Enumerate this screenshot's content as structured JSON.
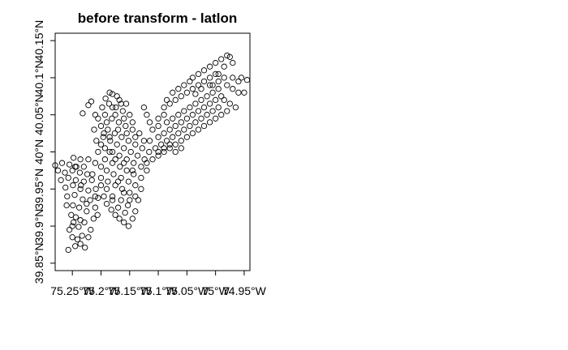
{
  "chart_data": {
    "type": "scatter",
    "title": "before transform - latlon",
    "xlabel": "",
    "ylabel": "",
    "xlim": [
      -75.28,
      -74.94
    ],
    "ylim": [
      39.84,
      40.16
    ],
    "x_ticks": [
      {
        "value": -75.25,
        "label": "75.25°W"
      },
      {
        "value": -75.2,
        "label": "75.2°W"
      },
      {
        "value": -75.15,
        "label": "75.15°W"
      },
      {
        "value": -75.1,
        "label": "75.1°W"
      },
      {
        "value": -75.05,
        "label": "75.05°W"
      },
      {
        "value": -75.0,
        "label": "75°W"
      },
      {
        "value": -74.95,
        "label": "74.95°W"
      }
    ],
    "y_ticks": [
      {
        "value": 39.85,
        "label": "39.85°N"
      },
      {
        "value": 39.9,
        "label": "39.9°N"
      },
      {
        "value": 39.95,
        "label": "39.95°N"
      },
      {
        "value": 40.0,
        "label": "40°N"
      },
      {
        "value": 40.05,
        "label": "40.05°N"
      },
      {
        "value": 40.1,
        "label": "40.1°N"
      },
      {
        "value": 40.15,
        "label": "40.15°N"
      }
    ],
    "grid": false,
    "legend": "none",
    "marker": "open-circle",
    "point_color": "#000000",
    "series": [
      {
        "points": [
          [
            -75.257,
            39.868
          ],
          [
            -75.245,
            39.873
          ],
          [
            -75.236,
            39.876
          ],
          [
            -75.228,
            39.871
          ],
          [
            -75.241,
            39.882
          ],
          [
            -75.25,
            39.885
          ],
          [
            -75.233,
            39.887
          ],
          [
            -75.222,
            39.885
          ],
          [
            -75.255,
            39.895
          ],
          [
            -75.239,
            39.899
          ],
          [
            -75.248,
            39.905
          ],
          [
            -75.229,
            39.905
          ],
          [
            -75.218,
            39.895
          ],
          [
            -75.252,
            39.915
          ],
          [
            -75.244,
            39.912
          ],
          [
            -75.236,
            39.908
          ],
          [
            -75.213,
            39.91
          ],
          [
            -75.206,
            39.915
          ],
          [
            -75.26,
            39.928
          ],
          [
            -75.249,
            39.928
          ],
          [
            -75.238,
            39.925
          ],
          [
            -75.225,
            39.92
          ],
          [
            -75.21,
            39.925
          ],
          [
            -75.259,
            39.94
          ],
          [
            -75.246,
            39.942
          ],
          [
            -75.232,
            39.936
          ],
          [
            -75.219,
            39.935
          ],
          [
            -75.205,
            39.938
          ],
          [
            -75.262,
            39.952
          ],
          [
            -75.249,
            39.955
          ],
          [
            -75.236,
            39.95
          ],
          [
            -75.222,
            39.948
          ],
          [
            -75.209,
            39.95
          ],
          [
            -75.27,
            39.962
          ],
          [
            -75.257,
            39.965
          ],
          [
            -75.244,
            39.962
          ],
          [
            -75.23,
            39.96
          ],
          [
            -75.216,
            39.962
          ],
          [
            -75.275,
            39.975
          ],
          [
            -75.263,
            39.972
          ],
          [
            -75.25,
            39.975
          ],
          [
            -75.237,
            39.972
          ],
          [
            -75.224,
            39.97
          ],
          [
            -75.28,
            39.982
          ],
          [
            -75.268,
            39.985
          ],
          [
            -75.255,
            39.983
          ],
          [
            -75.243,
            39.98
          ],
          [
            -75.23,
            39.98
          ],
          [
            -75.248,
            39.992
          ],
          [
            -75.236,
            39.99
          ],
          [
            -75.222,
            39.99
          ],
          [
            -75.21,
            39.985
          ],
          [
            -75.2,
            39.955
          ],
          [
            -75.195,
            39.94
          ],
          [
            -75.19,
            39.93
          ],
          [
            -75.182,
            39.922
          ],
          [
            -75.175,
            39.915
          ],
          [
            -75.168,
            39.91
          ],
          [
            -75.16,
            39.905
          ],
          [
            -75.152,
            39.9
          ],
          [
            -75.145,
            39.91
          ],
          [
            -75.158,
            39.918
          ],
          [
            -75.17,
            39.925
          ],
          [
            -75.18,
            39.935
          ],
          [
            -75.165,
            39.935
          ],
          [
            -75.153,
            39.928
          ],
          [
            -75.14,
            39.92
          ],
          [
            -75.135,
            39.935
          ],
          [
            -75.15,
            39.945
          ],
          [
            -75.163,
            39.95
          ],
          [
            -75.175,
            39.955
          ],
          [
            -75.188,
            39.96
          ],
          [
            -75.2,
            39.965
          ],
          [
            -75.19,
            39.975
          ],
          [
            -75.178,
            39.97
          ],
          [
            -75.165,
            39.965
          ],
          [
            -75.152,
            39.96
          ],
          [
            -75.14,
            39.955
          ],
          [
            -75.13,
            39.95
          ],
          [
            -75.143,
            39.97
          ],
          [
            -75.155,
            39.975
          ],
          [
            -75.167,
            39.98
          ],
          [
            -75.18,
            39.985
          ],
          [
            -75.193,
            39.99
          ],
          [
            -75.205,
            40.0
          ],
          [
            -75.193,
            40.005
          ],
          [
            -75.18,
            40.0
          ],
          [
            -75.168,
            39.995
          ],
          [
            -75.155,
            39.99
          ],
          [
            -75.143,
            39.985
          ],
          [
            -75.13,
            39.98
          ],
          [
            -75.12,
            39.975
          ],
          [
            -75.208,
            40.015
          ],
          [
            -75.196,
            40.02
          ],
          [
            -75.184,
            40.015
          ],
          [
            -75.172,
            40.01
          ],
          [
            -75.16,
            40.005
          ],
          [
            -75.148,
            40.0
          ],
          [
            -75.136,
            39.995
          ],
          [
            -75.124,
            39.99
          ],
          [
            -75.212,
            40.03
          ],
          [
            -75.2,
            40.035
          ],
          [
            -75.188,
            40.03
          ],
          [
            -75.176,
            40.025
          ],
          [
            -75.164,
            40.02
          ],
          [
            -75.152,
            40.015
          ],
          [
            -75.14,
            40.01
          ],
          [
            -75.128,
            40.005
          ],
          [
            -75.116,
            40.0
          ],
          [
            -75.205,
            40.045
          ],
          [
            -75.193,
            40.05
          ],
          [
            -75.181,
            40.045
          ],
          [
            -75.169,
            40.04
          ],
          [
            -75.157,
            40.035
          ],
          [
            -75.145,
            40.03
          ],
          [
            -75.133,
            40.025
          ],
          [
            -75.198,
            40.06
          ],
          [
            -75.186,
            40.065
          ],
          [
            -75.174,
            40.06
          ],
          [
            -75.162,
            40.055
          ],
          [
            -75.15,
            40.05
          ],
          [
            -75.192,
            40.072
          ],
          [
            -75.18,
            40.078
          ],
          [
            -75.168,
            40.07
          ],
          [
            -75.156,
            40.065
          ],
          [
            -75.185,
            40.08
          ],
          [
            -75.172,
            40.075
          ],
          [
            -75.217,
            40.068
          ],
          [
            -75.222,
            40.063
          ],
          [
            -75.232,
            40.052
          ],
          [
            -75.21,
            40.05
          ],
          [
            -75.195,
            40.025
          ],
          [
            -75.185,
            40.0
          ],
          [
            -75.11,
            39.99
          ],
          [
            -75.1,
            39.995
          ],
          [
            -75.09,
            40.0
          ],
          [
            -75.08,
            40.005
          ],
          [
            -75.07,
            40.01
          ],
          [
            -75.06,
            40.015
          ],
          [
            -75.05,
            40.02
          ],
          [
            -75.04,
            40.025
          ],
          [
            -75.03,
            40.03
          ],
          [
            -75.02,
            40.035
          ],
          [
            -75.01,
            40.04
          ],
          [
            -75.0,
            40.045
          ],
          [
            -74.99,
            40.05
          ],
          [
            -74.98,
            40.055
          ],
          [
            -75.105,
            40.005
          ],
          [
            -75.095,
            40.01
          ],
          [
            -75.085,
            40.015
          ],
          [
            -75.075,
            40.02
          ],
          [
            -75.065,
            40.025
          ],
          [
            -75.055,
            40.03
          ],
          [
            -75.045,
            40.035
          ],
          [
            -75.035,
            40.04
          ],
          [
            -75.025,
            40.045
          ],
          [
            -75.015,
            40.05
          ],
          [
            -75.005,
            40.055
          ],
          [
            -74.995,
            40.06
          ],
          [
            -75.115,
            40.015
          ],
          [
            -75.1,
            40.02
          ],
          [
            -75.09,
            40.025
          ],
          [
            -75.08,
            40.03
          ],
          [
            -75.07,
            40.035
          ],
          [
            -75.06,
            40.04
          ],
          [
            -75.05,
            40.045
          ],
          [
            -75.04,
            40.05
          ],
          [
            -75.03,
            40.055
          ],
          [
            -75.02,
            40.06
          ],
          [
            -75.01,
            40.065
          ],
          [
            -75.0,
            40.07
          ],
          [
            -74.99,
            40.075
          ],
          [
            -75.1,
            40.035
          ],
          [
            -75.085,
            40.04
          ],
          [
            -75.075,
            40.045
          ],
          [
            -75.065,
            40.05
          ],
          [
            -75.055,
            40.055
          ],
          [
            -75.045,
            40.06
          ],
          [
            -75.035,
            40.065
          ],
          [
            -75.025,
            40.07
          ],
          [
            -75.015,
            40.075
          ],
          [
            -75.005,
            40.08
          ],
          [
            -74.995,
            40.085
          ],
          [
            -75.09,
            40.06
          ],
          [
            -75.08,
            40.065
          ],
          [
            -75.07,
            40.07
          ],
          [
            -75.06,
            40.075
          ],
          [
            -75.05,
            40.08
          ],
          [
            -75.04,
            40.085
          ],
          [
            -75.03,
            40.09
          ],
          [
            -75.02,
            40.095
          ],
          [
            -75.01,
            40.1
          ],
          [
            -75.0,
            40.105
          ],
          [
            -75.04,
            40.1
          ],
          [
            -75.03,
            40.105
          ],
          [
            -75.02,
            40.11
          ],
          [
            -75.01,
            40.115
          ],
          [
            -75.0,
            40.12
          ],
          [
            -74.99,
            40.125
          ],
          [
            -74.98,
            40.13
          ],
          [
            -74.975,
            40.128
          ],
          [
            -74.97,
            40.12
          ],
          [
            -74.985,
            40.115
          ],
          [
            -74.995,
            40.105
          ],
          [
            -74.97,
            40.1
          ],
          [
            -74.96,
            40.095
          ],
          [
            -74.955,
            40.1
          ],
          [
            -74.945,
            40.097
          ],
          [
            -74.98,
            40.09
          ],
          [
            -74.97,
            40.085
          ],
          [
            -74.96,
            40.08
          ],
          [
            -74.95,
            40.08
          ],
          [
            -75.005,
            40.09
          ],
          [
            -74.985,
            40.1
          ],
          [
            -75.25,
            39.9
          ],
          [
            -75.245,
            39.98
          ],
          [
            -75.235,
            39.955
          ],
          [
            -75.225,
            39.93
          ],
          [
            -75.215,
            39.97
          ],
          [
            -75.21,
            39.94
          ],
          [
            -75.2,
            39.98
          ],
          [
            -75.19,
            39.95
          ],
          [
            -75.18,
            39.94
          ],
          [
            -75.17,
            39.96
          ],
          [
            -75.16,
            39.945
          ],
          [
            -75.15,
            39.935
          ],
          [
            -75.14,
            39.94
          ],
          [
            -75.13,
            39.965
          ],
          [
            -75.12,
            39.985
          ],
          [
            -75.175,
            39.99
          ],
          [
            -75.16,
            39.985
          ],
          [
            -75.145,
            39.975
          ],
          [
            -75.2,
            40.01
          ],
          [
            -75.185,
            40.02
          ],
          [
            -75.17,
            40.03
          ],
          [
            -75.155,
            40.025
          ],
          [
            -75.14,
            40.02
          ],
          [
            -75.125,
            40.015
          ],
          [
            -75.19,
            40.04
          ],
          [
            -75.175,
            40.05
          ],
          [
            -75.16,
            40.045
          ],
          [
            -75.145,
            40.04
          ],
          [
            -75.18,
            40.06
          ],
          [
            -75.165,
            40.065
          ],
          [
            -75.1,
            40.0
          ],
          [
            -75.09,
            40.005
          ],
          [
            -75.08,
            40.01
          ],
          [
            -75.07,
            40.0
          ],
          [
            -75.06,
            40.005
          ],
          [
            -75.1,
            40.045
          ],
          [
            -75.09,
            40.05
          ],
          [
            -75.11,
            40.03
          ],
          [
            -75.115,
            40.04
          ],
          [
            -75.12,
            40.05
          ],
          [
            -75.125,
            40.06
          ],
          [
            -75.085,
            40.07
          ],
          [
            -75.075,
            40.08
          ],
          [
            -75.065,
            40.085
          ],
          [
            -75.055,
            40.09
          ],
          [
            -75.045,
            40.095
          ],
          [
            -75.035,
            40.078
          ],
          [
            -75.025,
            40.085
          ],
          [
            -75.01,
            40.09
          ],
          [
            -74.995,
            40.095
          ],
          [
            -74.985,
            40.07
          ],
          [
            -74.975,
            40.065
          ],
          [
            -74.965,
            40.06
          ]
        ]
      }
    ]
  }
}
